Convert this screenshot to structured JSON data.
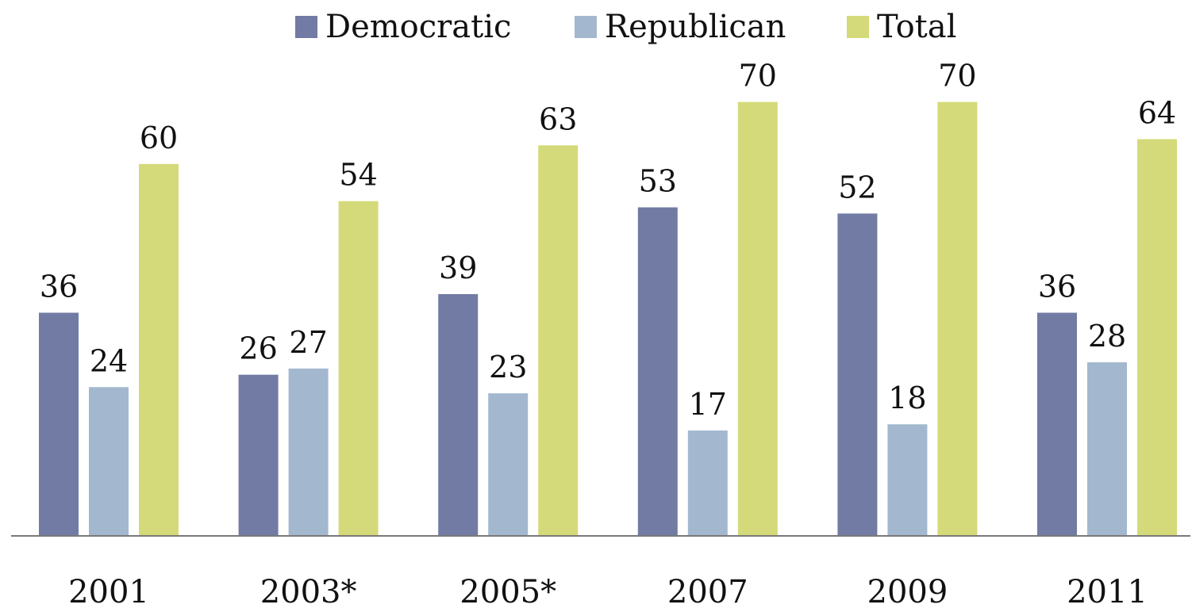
{
  "chart_data": {
    "type": "bar",
    "categories": [
      "2001",
      "2003*",
      "2005*",
      "2007",
      "2009",
      "2011"
    ],
    "series": [
      {
        "name": "Democratic",
        "values": [
          36,
          26,
          39,
          53,
          52,
          36
        ],
        "color": "#717ba4"
      },
      {
        "name": "Republican",
        "values": [
          24,
          27,
          23,
          17,
          18,
          28
        ],
        "color": "#a3b8cf"
      },
      {
        "name": "Total",
        "values": [
          60,
          54,
          63,
          70,
          70,
          64
        ],
        "color": "#d4da79"
      }
    ],
    "ylim": [
      0,
      70
    ],
    "grid": false,
    "legend_position": "top-center",
    "data_labels": true,
    "axis_color": "#7a7a7a"
  }
}
